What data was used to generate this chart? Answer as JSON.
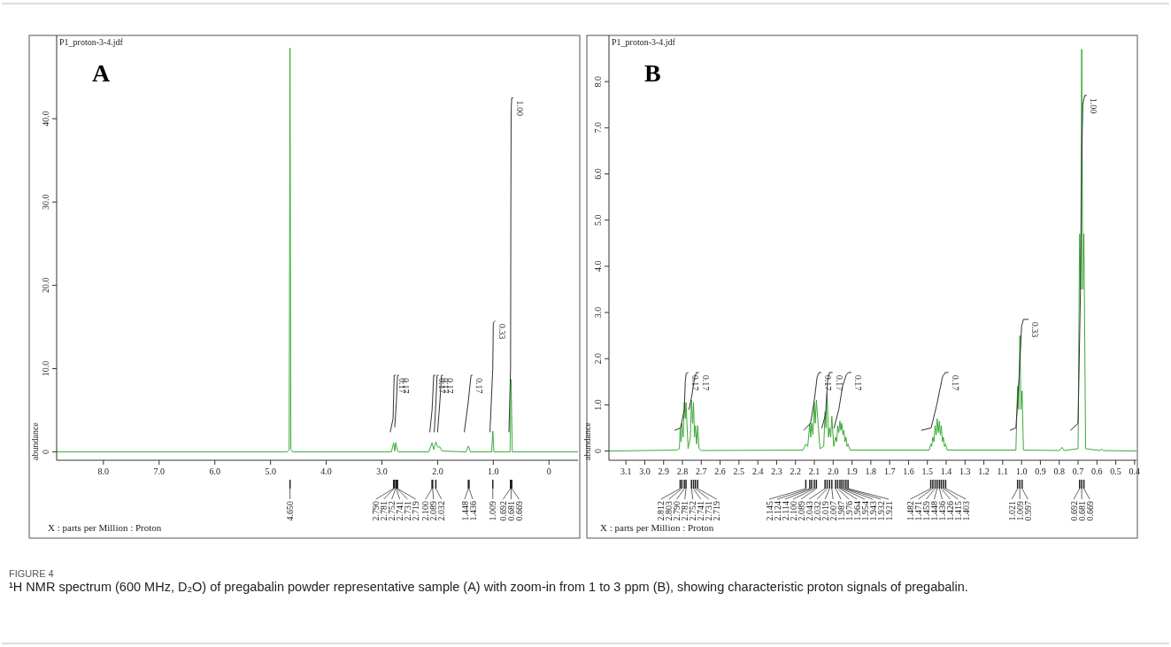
{
  "chart_data": [
    {
      "type": "line",
      "title": "A",
      "subtitle": "P1_proton-3-4.jdf",
      "xlabel": "X : parts per Million : Proton",
      "ylabel": "abundance",
      "xlim": [
        8.84,
        -0.52
      ],
      "ylim": [
        -1,
        50
      ],
      "xticks": [
        {
          "value": 8,
          "label": "8.0"
        },
        {
          "value": 7,
          "label": "7.0"
        },
        {
          "value": 6,
          "label": "6.0"
        },
        {
          "value": 5,
          "label": "5.0"
        },
        {
          "value": 4,
          "label": "4.0"
        },
        {
          "value": 3,
          "label": "3.0"
        },
        {
          "value": 2,
          "label": "2.0"
        },
        {
          "value": 1,
          "label": "1.0"
        },
        0
      ],
      "yticks": [
        0,
        {
          "value": 10,
          "label": "10.0"
        },
        {
          "value": 20,
          "label": "20.0"
        },
        {
          "value": 30,
          "label": "30.0"
        },
        {
          "value": 40,
          "label": "40.0"
        }
      ],
      "series": [
        {
          "color": "#3aaa35",
          "x": [
            8.84,
            4.7,
            4.665,
            4.65,
            4.635,
            4.6,
            2.83,
            2.79,
            2.77,
            2.752,
            2.72,
            2.7,
            2.16,
            2.1,
            2.07,
            2.032,
            2.0,
            1.96,
            1.92,
            1.49,
            1.448,
            1.41,
            1.03,
            1.009,
            0.99,
            0.7,
            0.681,
            0.66,
            -0.52
          ],
          "values": [
            0,
            0,
            0.3,
            48.5,
            0.3,
            0,
            0,
            1.1,
            0.1,
            1.1,
            0.1,
            0,
            0,
            1.1,
            0.3,
            1.2,
            0.6,
            0.6,
            0.1,
            0,
            0.7,
            0,
            0,
            2.5,
            0,
            0,
            8.7,
            0,
            0
          ]
        },
        {
          "color": "#333333",
          "x": [
            2.85,
            2.8,
            2.78,
            2.76
          ],
          "values": [
            2.4,
            4,
            9.2,
            9.2
          ]
        },
        {
          "color": "#333333",
          "x": [
            2.77,
            2.74,
            2.72,
            2.7
          ],
          "values": [
            3,
            6,
            9.2,
            9.2
          ]
        },
        {
          "color": "#333333",
          "x": [
            2.14,
            2.1,
            2.07,
            2.05
          ],
          "values": [
            2.4,
            5,
            9.2,
            9.2
          ]
        },
        {
          "color": "#333333",
          "x": [
            2.06,
            2.03,
            2.01,
            1.99
          ],
          "values": [
            2.4,
            6,
            9.2,
            9.2
          ]
        },
        {
          "color": "#333333",
          "x": [
            2.0,
            1.96,
            1.93,
            1.91
          ],
          "values": [
            2.4,
            6,
            9.2,
            9.2
          ]
        },
        {
          "color": "#333333",
          "x": [
            1.52,
            1.45,
            1.4,
            1.38
          ],
          "values": [
            2.4,
            6,
            9.2,
            9.2
          ]
        },
        {
          "color": "#333333",
          "x": [
            1.06,
            1.01,
            1.0,
            0.97
          ],
          "values": [
            2.4,
            10,
            15.5,
            15.7
          ]
        },
        {
          "color": "#333333",
          "x": [
            0.72,
            0.69,
            0.685,
            0.68,
            0.67,
            0.65
          ],
          "values": [
            2.4,
            10,
            30,
            41,
            42.5,
            42.5
          ]
        }
      ],
      "annotations": [
        {
          "text": "0.17",
          "x": 2.76,
          "y": 9.2
        },
        {
          "text": "0.17",
          "x": 2.7,
          "y": 9.2
        },
        {
          "text": "0.17",
          "x": 2.05,
          "y": 9.2
        },
        {
          "text": "0.17",
          "x": 1.99,
          "y": 9.2
        },
        {
          "text": "0.17",
          "x": 1.91,
          "y": 9.2
        },
        {
          "text": "0.17",
          "x": 1.38,
          "y": 9.2
        },
        {
          "text": "0.33",
          "x": 0.97,
          "y": 15.7
        },
        {
          "text": "1.00",
          "x": 0.65,
          "y": 42.5
        },
        {
          "text": "4.650",
          "x": 4.65
        },
        {
          "text": "2.790",
          "x": 2.79
        },
        {
          "text": "2.781",
          "x": 2.781
        },
        {
          "text": "2.752",
          "x": 2.752
        },
        {
          "text": "2.741",
          "x": 2.741
        },
        {
          "text": "2.731",
          "x": 2.731
        },
        {
          "text": "2.719",
          "x": 2.719
        },
        {
          "text": "2.100",
          "x": 2.1
        },
        {
          "text": "2.089",
          "x": 2.089
        },
        {
          "text": "2.032",
          "x": 2.032
        },
        {
          "text": "1.448",
          "x": 1.448
        },
        {
          "text": "1.436",
          "x": 1.436
        },
        {
          "text": "1.009",
          "x": 1.009
        },
        {
          "text": "0.692",
          "x": 0.692
        },
        {
          "text": "0.681",
          "x": 0.681
        },
        {
          "text": "0.669",
          "x": 0.669
        },
        "FIGURE 4",
        "¹H NMR spectrum (600 MHz, D₂O) of pregabalin powder representative sample (A) with zoom-in from 1 to 3 ppm (B), showing characteristic proton signals of pregabalin."
      ]
    },
    {
      "type": "line",
      "title": "B",
      "subtitle": "P1_proton-3-4.jdf",
      "xlabel": "X : parts per Million : Proton",
      "ylabel": "abundance",
      "xlim": [
        3.19,
        0.39
      ],
      "ylim": [
        -0.2,
        9.0
      ],
      "xticks": [
        3.1,
        {
          "value": 3,
          "label": "3.0"
        },
        2.9,
        2.8,
        2.7,
        2.6,
        2.5,
        2.4,
        2.3,
        2.2,
        2.1,
        {
          "value": 2,
          "label": "2.0"
        },
        1.9,
        1.8,
        1.7,
        1.6,
        1.5,
        1.4,
        1.3,
        1.2,
        1.1,
        {
          "value": 1,
          "label": "1.0"
        },
        0.9,
        0.8,
        0.7,
        0.6,
        0.5,
        0.4
      ],
      "yticks": [
        0,
        {
          "value": 1,
          "label": "1.0"
        },
        {
          "value": 2,
          "label": "2.0"
        },
        {
          "value": 3,
          "label": "3.0"
        },
        {
          "value": 4,
          "label": "4.0"
        },
        {
          "value": 5,
          "label": "5.0"
        },
        {
          "value": 6,
          "label": "6.0"
        },
        {
          "value": 7,
          "label": "7.0"
        },
        {
          "value": 8,
          "label": "8.0"
        }
      ],
      "series": [
        {
          "color": "#3aaa35",
          "x": [
            3.19,
            2.83,
            2.816,
            2.812,
            2.807,
            2.803,
            2.796,
            2.79,
            2.785,
            2.781,
            2.77,
            2.758,
            2.752,
            2.746,
            2.741,
            2.736,
            2.731,
            2.725,
            2.719,
            2.712,
            2.7,
            2.16,
            2.145,
            2.135,
            2.124,
            2.119,
            2.114,
            2.107,
            2.1,
            2.095,
            2.089,
            2.07,
            2.05,
            2.043,
            2.038,
            2.032,
            2.025,
            2.019,
            2.013,
            2.007,
            1.997,
            1.987,
            1.981,
            1.976,
            1.97,
            1.964,
            1.959,
            1.954,
            1.948,
            1.943,
            1.937,
            1.932,
            1.926,
            1.921,
            1.91,
            1.49,
            1.482,
            1.477,
            1.471,
            1.465,
            1.459,
            1.453,
            1.448,
            1.442,
            1.436,
            1.431,
            1.426,
            1.42,
            1.415,
            1.409,
            1.403,
            1.395,
            1.03,
            1.021,
            1.015,
            1.009,
            1.003,
            0.997,
            0.99,
            0.8,
            0.785,
            0.775,
            0.7,
            0.692,
            0.686,
            0.681,
            0.675,
            0.669,
            0.66,
            0.585,
            0.575,
            0.565,
            0.39
          ],
          "values": [
            0,
            0.02,
            0.05,
            0.5,
            0.2,
            0.6,
            0.3,
            1.05,
            0.7,
            1.05,
            0.05,
            0.3,
            1.1,
            0.6,
            1.05,
            0.3,
            0.55,
            0.15,
            0.55,
            0.05,
            0.01,
            0.02,
            0.15,
            0.1,
            0.6,
            0.3,
            0.6,
            0.35,
            1.05,
            0.6,
            1.1,
            0.05,
            0.1,
            0.85,
            0.5,
            1.25,
            0.3,
            0.5,
            0.3,
            0.75,
            0.1,
            0.3,
            0.2,
            0.55,
            0.4,
            0.65,
            0.45,
            0.6,
            0.35,
            0.45,
            0.2,
            0.3,
            0.1,
            0.15,
            0.02,
            0.02,
            0.15,
            0.1,
            0.3,
            0.2,
            0.55,
            0.35,
            0.7,
            0.4,
            0.65,
            0.35,
            0.55,
            0.2,
            0.3,
            0.1,
            0.15,
            0.02,
            0.02,
            1.4,
            0.9,
            2.5,
            0.9,
            1.3,
            0.02,
            0.01,
            0.08,
            0.01,
            0.05,
            4.7,
            3.5,
            8.7,
            3.5,
            4.7,
            0.05,
            0.01,
            0.04,
            0.01,
            0
          ]
        },
        {
          "color": "#333333",
          "x": [
            2.84,
            2.81,
            2.79,
            2.785,
            2.78,
            2.77
          ],
          "values": [
            0.45,
            0.5,
            0.9,
            1.5,
            1.68,
            1.7
          ]
        },
        {
          "color": "#333333",
          "x": [
            2.765,
            2.75,
            2.735,
            2.725,
            2.715
          ],
          "values": [
            0.9,
            1.2,
            1.6,
            1.7,
            1.7
          ]
        },
        {
          "color": "#333333",
          "x": [
            2.155,
            2.12,
            2.1,
            2.085,
            2.075,
            2.065
          ],
          "values": [
            0.45,
            0.6,
            1.1,
            1.6,
            1.7,
            1.7
          ]
        },
        {
          "color": "#333333",
          "x": [
            2.06,
            2.04,
            2.03,
            2.02,
            2.005
          ],
          "values": [
            0.5,
            0.8,
            1.5,
            1.7,
            1.7
          ]
        },
        {
          "color": "#333333",
          "x": [
            1.995,
            1.97,
            1.95,
            1.93,
            1.92,
            1.905
          ],
          "values": [
            0.5,
            0.9,
            1.4,
            1.65,
            1.7,
            1.7
          ]
        },
        {
          "color": "#333333",
          "x": [
            1.53,
            1.48,
            1.45,
            1.42,
            1.405,
            1.39
          ],
          "values": [
            0.45,
            0.5,
            1.0,
            1.6,
            1.7,
            1.7
          ]
        },
        {
          "color": "#333333",
          "x": [
            1.06,
            1.03,
            1.01,
            1.0,
            0.99,
            0.965
          ],
          "values": [
            0.45,
            0.5,
            1.8,
            2.7,
            2.85,
            2.85
          ]
        },
        {
          "color": "#333333",
          "x": [
            0.74,
            0.7,
            0.685,
            0.68,
            0.675,
            0.665,
            0.655
          ],
          "values": [
            0.45,
            0.6,
            4.0,
            6.5,
            7.5,
            7.7,
            7.7
          ]
        }
      ],
      "annotations": [
        {
          "text": "0.17",
          "x": 2.77,
          "y": 1.7
        },
        {
          "text": "0.17",
          "x": 2.715,
          "y": 1.7
        },
        {
          "text": "0.17",
          "x": 2.065,
          "y": 1.7
        },
        {
          "text": "0.17",
          "x": 2.005,
          "y": 1.7
        },
        {
          "text": "0.17",
          "x": 1.905,
          "y": 1.7
        },
        {
          "text": "0.17",
          "x": 1.39,
          "y": 1.7
        },
        {
          "text": "0.33",
          "x": 0.965,
          "y": 2.85
        },
        {
          "text": "1.00",
          "x": 0.655,
          "y": 7.7
        },
        {
          "text": "2.812",
          "x": 2.812
        },
        {
          "text": "2.803",
          "x": 2.803
        },
        {
          "text": "2.790",
          "x": 2.79
        },
        {
          "text": "2.781",
          "x": 2.781
        },
        {
          "text": "2.752",
          "x": 2.752
        },
        {
          "text": "2.741",
          "x": 2.741
        },
        {
          "text": "2.731",
          "x": 2.731
        },
        {
          "text": "2.719",
          "x": 2.719
        },
        {
          "text": "2.145",
          "x": 2.145
        },
        {
          "text": "2.124",
          "x": 2.124
        },
        {
          "text": "2.114",
          "x": 2.114
        },
        {
          "text": "2.100",
          "x": 2.1
        },
        {
          "text": "2.089",
          "x": 2.089
        },
        {
          "text": "2.043",
          "x": 2.043
        },
        {
          "text": "2.032",
          "x": 2.032
        },
        {
          "text": "2.019",
          "x": 2.019
        },
        {
          "text": "2.007",
          "x": 2.007
        },
        {
          "text": "1.987",
          "x": 1.987
        },
        {
          "text": "1.976",
          "x": 1.976
        },
        {
          "text": "1.964",
          "x": 1.964
        },
        {
          "text": "1.954",
          "x": 1.954
        },
        {
          "text": "1.943",
          "x": 1.943
        },
        {
          "text": "1.932",
          "x": 1.932
        },
        {
          "text": "1.921",
          "x": 1.921
        },
        {
          "text": "1.482",
          "x": 1.482
        },
        {
          "text": "1.471",
          "x": 1.471
        },
        {
          "text": "1.459",
          "x": 1.459
        },
        {
          "text": "1.448",
          "x": 1.448
        },
        {
          "text": "1.436",
          "x": 1.436
        },
        {
          "text": "1.426",
          "x": 1.426
        },
        {
          "text": "1.415",
          "x": 1.415
        },
        {
          "text": "1.403",
          "x": 1.403
        },
        {
          "text": "1.021",
          "x": 1.021
        },
        {
          "text": "1.009",
          "x": 1.009
        },
        {
          "text": "0.997",
          "x": 0.997
        },
        {
          "text": "0.692",
          "x": 0.692
        },
        {
          "text": "0.681",
          "x": 0.681
        },
        {
          "text": "0.669",
          "x": 0.669
        }
      ]
    }
  ]
}
